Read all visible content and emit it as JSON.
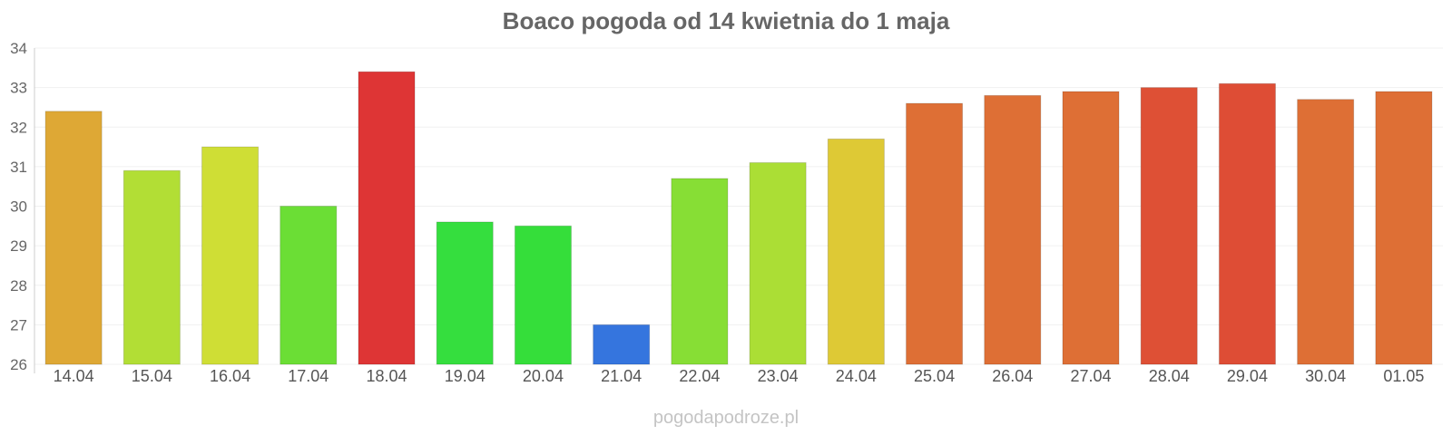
{
  "chart_data": {
    "type": "bar",
    "title": "Boaco pogoda od 14 kwietnia do 1 maja",
    "xlabel": "",
    "ylabel": "",
    "categories": [
      "14.04",
      "15.04",
      "16.04",
      "17.04",
      "18.04",
      "19.04",
      "20.04",
      "21.04",
      "22.04",
      "23.04",
      "24.04",
      "25.04",
      "26.04",
      "27.04",
      "28.04",
      "29.04",
      "30.04",
      "01.05"
    ],
    "values": [
      32.4,
      30.9,
      31.5,
      30.0,
      33.4,
      29.6,
      29.5,
      27.0,
      30.7,
      31.1,
      31.7,
      32.6,
      32.8,
      32.9,
      33.0,
      33.1,
      32.7,
      32.9
    ],
    "colors": [
      "#dea835",
      "#b2de35",
      "#cfde35",
      "#6bde35",
      "#de3535",
      "#35de3e",
      "#35de3a",
      "#3575de",
      "#87de35",
      "#abde35",
      "#dec935",
      "#de6f35",
      "#de6f35",
      "#de6f35",
      "#de5035",
      "#de4d35",
      "#de6f35",
      "#de6f35"
    ],
    "ylim": [
      26,
      34
    ],
    "yticks": [
      "26",
      "27",
      "28",
      "29",
      "30",
      "31",
      "32",
      "33",
      "34"
    ],
    "grid": true,
    "legend": "none"
  },
  "watermark": "pogodapodroze.pl"
}
